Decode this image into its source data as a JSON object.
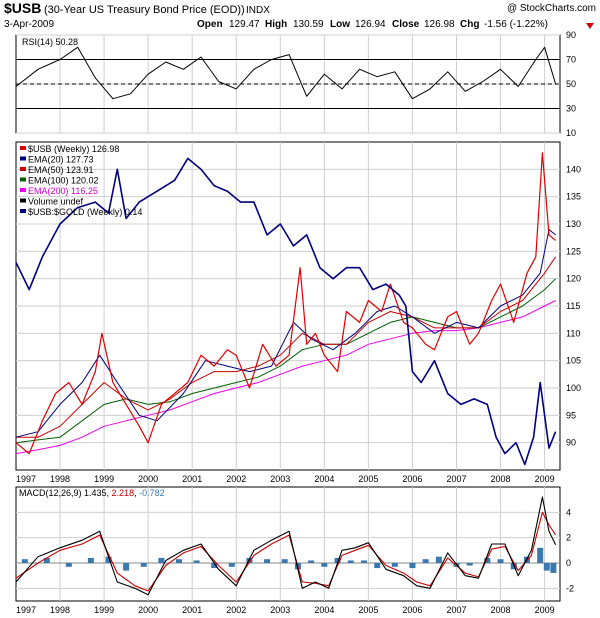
{
  "header": {
    "symbol": "$USB",
    "name": "(30-Year US Treasury Bond Price (EOD))",
    "exchange": "INDX",
    "date": "3-Apr-2009",
    "copyright": "@ StockCharts.com",
    "open_label": "Open",
    "open": "129.47",
    "high_label": "High",
    "high": "130.59",
    "low_label": "Low",
    "low": "126.94",
    "close_label": "Close",
    "close": "126.98",
    "chg_label": "Chg",
    "chg": "-1.56 (-1.22%)"
  },
  "colors": {
    "price": "#e00000",
    "ema20": "#000080",
    "ema50": "#cc0000",
    "ema100": "#006000",
    "ema200": "#ee00ee",
    "gold": "#000080",
    "macd": "#000000",
    "signal": "#cc0000",
    "hist": "#3a78b0",
    "grid": "#cfcfcf",
    "frame": "#000000"
  },
  "chart_data": [
    {
      "type": "line",
      "title": "RSI(14) 50.28",
      "ylim": [
        10,
        90
      ],
      "yticks": [
        10,
        30,
        50,
        70,
        90
      ],
      "reference_lines": [
        30,
        50,
        70
      ],
      "series": [
        {
          "name": "RSI(14)",
          "value": 50.28,
          "x": [
            1997.0,
            1997.5,
            1998.0,
            1998.4,
            1998.8,
            1999.2,
            1999.6,
            2000.0,
            2000.4,
            2000.8,
            2001.2,
            2001.6,
            2002.0,
            2002.4,
            2002.8,
            2003.2,
            2003.6,
            2004.0,
            2004.4,
            2004.8,
            2005.2,
            2005.6,
            2006.0,
            2006.4,
            2006.8,
            2007.2,
            2007.6,
            2008.0,
            2008.4,
            2008.8,
            2009.0,
            2009.25
          ],
          "y": [
            48,
            62,
            70,
            80,
            55,
            38,
            42,
            58,
            68,
            62,
            72,
            52,
            46,
            62,
            70,
            74,
            40,
            58,
            46,
            62,
            56,
            60,
            38,
            46,
            60,
            44,
            52,
            62,
            48,
            70,
            80,
            50
          ]
        }
      ]
    },
    {
      "type": "line",
      "title": "$USB (Weekly) 126.98",
      "ylim": [
        85,
        145
      ],
      "yticks": [
        90,
        95,
        100,
        105,
        110,
        115,
        120,
        125,
        130,
        135,
        140
      ],
      "xlim": [
        1997,
        2009.35
      ],
      "xticks": [
        "1997",
        "1998",
        "1999",
        "2000",
        "2001",
        "2002",
        "2003",
        "2004",
        "2005",
        "2006",
        "2007",
        "2008",
        "2009"
      ],
      "legend": [
        {
          "label": "$USB (Weekly) 126.98",
          "color": "#e00000"
        },
        {
          "label": "EMA(20) 127.73",
          "color": "#000080"
        },
        {
          "label": "EMA(50) 123.91",
          "color": "#cc0000"
        },
        {
          "label": "EMA(100) 120.02",
          "color": "#006000"
        },
        {
          "label": "EMA(200) 116.25",
          "color": "#ee00ee"
        },
        {
          "label": "Volume undef",
          "color": "#000000"
        },
        {
          "label": "$USB:$GOLD (Weekly) 0.14",
          "color": "#000080"
        }
      ],
      "series": [
        {
          "name": "$USB (Weekly)",
          "x": [
            1997.0,
            1997.3,
            1997.6,
            1997.9,
            1998.2,
            1998.5,
            1998.8,
            1998.95,
            1999.2,
            1999.5,
            1999.8,
            2000.0,
            2000.3,
            2000.6,
            2000.9,
            2001.2,
            2001.5,
            2001.8,
            2002.0,
            2002.3,
            2002.6,
            2002.9,
            2003.2,
            2003.45,
            2003.6,
            2003.8,
            2004.0,
            2004.3,
            2004.5,
            2004.8,
            2005.0,
            2005.3,
            2005.5,
            2005.8,
            2006.0,
            2006.3,
            2006.5,
            2006.8,
            2007.0,
            2007.3,
            2007.5,
            2007.8,
            2008.0,
            2008.3,
            2008.6,
            2008.8,
            2008.95,
            2009.1,
            2009.25
          ],
          "y": [
            90,
            88,
            94,
            99,
            101,
            97,
            103,
            110,
            101,
            97,
            93,
            90,
            97,
            99,
            101,
            106,
            104,
            107,
            106,
            100,
            108,
            104,
            106,
            122,
            108,
            110,
            106,
            103,
            114,
            112,
            116,
            114,
            119,
            112,
            111,
            108,
            107,
            113,
            114,
            108,
            110,
            116,
            119,
            112,
            121,
            124,
            143,
            128,
            127
          ]
        },
        {
          "name": "EMA(20)",
          "x": [
            1997.0,
            1997.5,
            1998.0,
            1998.5,
            1998.9,
            1999.3,
            1999.8,
            2000.2,
            2000.8,
            2001.3,
            2001.8,
            2002.3,
            2002.8,
            2003.3,
            2003.7,
            2004.2,
            2004.7,
            2005.2,
            2005.6,
            2006.0,
            2006.5,
            2007.0,
            2007.5,
            2008.0,
            2008.5,
            2008.9,
            2009.1,
            2009.25
          ],
          "y": [
            91,
            92,
            97,
            101,
            106,
            101,
            95,
            94,
            99,
            105,
            104,
            103,
            104,
            112,
            109,
            107,
            110,
            114,
            115,
            113,
            110,
            112,
            111,
            115,
            117,
            121,
            129,
            128
          ]
        },
        {
          "name": "EMA(50)",
          "x": [
            1997.0,
            1997.5,
            1998.0,
            1998.5,
            1999.0,
            1999.5,
            2000.0,
            2000.5,
            2001.0,
            2001.5,
            2002.0,
            2002.5,
            2003.0,
            2003.5,
            2004.0,
            2004.5,
            2005.0,
            2005.5,
            2006.0,
            2006.5,
            2007.0,
            2007.5,
            2008.0,
            2008.5,
            2009.0,
            2009.25
          ],
          "y": [
            91,
            91,
            93,
            97,
            101,
            98,
            96,
            98,
            101,
            103,
            103,
            104,
            106,
            110,
            108,
            108,
            112,
            114,
            113,
            111,
            111,
            111,
            114,
            116,
            121,
            124
          ]
        },
        {
          "name": "EMA(100)",
          "x": [
            1997.0,
            1997.5,
            1998.0,
            1998.5,
            1999.0,
            1999.5,
            2000.0,
            2000.5,
            2001.0,
            2001.5,
            2002.0,
            2002.5,
            2003.0,
            2003.5,
            2004.0,
            2004.5,
            2005.0,
            2005.5,
            2006.0,
            2006.5,
            2007.0,
            2007.5,
            2008.0,
            2008.5,
            2009.0,
            2009.25
          ],
          "y": [
            90,
            90.5,
            91,
            94,
            97,
            98,
            97,
            97.5,
            99,
            100,
            101,
            102,
            104,
            107,
            108,
            108,
            110,
            112,
            113,
            112,
            111,
            111,
            113,
            115,
            118,
            120
          ]
        },
        {
          "name": "EMA(200)",
          "x": [
            1997.0,
            1997.5,
            1998.0,
            1998.5,
            1999.0,
            1999.5,
            2000.0,
            2000.5,
            2001.0,
            2001.5,
            2002.0,
            2002.5,
            2003.0,
            2003.5,
            2004.0,
            2004.5,
            2005.0,
            2005.5,
            2006.0,
            2006.5,
            2007.0,
            2007.5,
            2008.0,
            2008.5,
            2009.0,
            2009.25
          ],
          "y": [
            88,
            88.7,
            89.5,
            91,
            93,
            94,
            95,
            96,
            97.5,
            99,
            100,
            101,
            102.5,
            104,
            105,
            106,
            108,
            109,
            110,
            110.5,
            110.5,
            111,
            112,
            113,
            115,
            116
          ]
        },
        {
          "name": "$USB:$GOLD (Weekly)",
          "x": [
            1997.0,
            1997.3,
            1997.6,
            1998.0,
            1998.4,
            1998.8,
            1999.1,
            1999.3,
            1999.5,
            1999.8,
            2000.2,
            2000.6,
            2000.9,
            2001.2,
            2001.5,
            2001.8,
            2002.1,
            2002.4,
            2002.7,
            2003.0,
            2003.3,
            2003.6,
            2003.9,
            2004.2,
            2004.5,
            2004.8,
            2005.1,
            2005.4,
            2005.7,
            2005.85,
            2006.0,
            2006.2,
            2006.5,
            2006.8,
            2007.1,
            2007.4,
            2007.7,
            2007.9,
            2008.1,
            2008.35,
            2008.55,
            2008.75,
            2008.9,
            2009.1,
            2009.25
          ],
          "y": [
            123,
            118,
            124,
            130,
            133,
            134,
            132,
            140,
            131,
            134,
            136,
            138,
            142,
            140,
            137,
            136,
            134,
            134,
            128,
            130,
            126,
            128,
            122,
            120,
            122,
            122,
            118,
            119,
            117,
            115,
            103,
            101,
            105,
            99,
            97,
            98,
            97,
            91,
            88,
            90,
            86,
            91,
            101,
            89,
            92
          ]
        }
      ]
    },
    {
      "type": "line",
      "title": "MACD(12,26,9) 1.435, 2.218, -0.782",
      "ylim": [
        -3,
        6
      ],
      "yticks": [
        -2,
        0,
        2,
        4
      ],
      "series": [
        {
          "name": "MACD(12,26,9)",
          "value": 1.435,
          "x": [
            1997.0,
            1997.5,
            1998.0,
            1998.5,
            1998.9,
            1999.3,
            1999.7,
            2000.0,
            2000.4,
            2000.8,
            2001.2,
            2001.6,
            2002.0,
            2002.4,
            2002.8,
            2003.2,
            2003.5,
            2003.8,
            2004.1,
            2004.4,
            2004.7,
            2005.0,
            2005.4,
            2005.8,
            2006.1,
            2006.4,
            2006.8,
            2007.2,
            2007.5,
            2007.8,
            2008.1,
            2008.4,
            2008.7,
            2008.95,
            2009.1,
            2009.25
          ],
          "y": [
            -1.5,
            0.5,
            1.2,
            1.8,
            2.5,
            -1.5,
            -2.0,
            -2.5,
            0.2,
            1.0,
            1.5,
            -0.5,
            -1.8,
            1.0,
            1.8,
            2.5,
            -2.0,
            -1.5,
            -2.0,
            1.0,
            1.2,
            1.6,
            -0.5,
            -1.0,
            -1.8,
            -2.0,
            0.8,
            -1.0,
            -1.2,
            1.5,
            1.5,
            -1.0,
            1.0,
            5.2,
            2.5,
            1.435
          ]
        },
        {
          "name": "Signal",
          "value": 2.218,
          "x": [
            1997.0,
            1997.5,
            1998.0,
            1998.5,
            1998.9,
            1999.3,
            1999.7,
            2000.0,
            2000.4,
            2000.8,
            2001.2,
            2001.6,
            2002.0,
            2002.4,
            2002.8,
            2003.2,
            2003.5,
            2003.8,
            2004.1,
            2004.4,
            2004.7,
            2005.0,
            2005.4,
            2005.8,
            2006.1,
            2006.4,
            2006.8,
            2007.2,
            2007.5,
            2007.8,
            2008.1,
            2008.4,
            2008.7,
            2008.95,
            2009.1,
            2009.25
          ],
          "y": [
            -1.2,
            0.0,
            1.0,
            1.5,
            2.2,
            -0.8,
            -1.8,
            -2.2,
            -0.2,
            0.8,
            1.3,
            -0.2,
            -1.5,
            0.6,
            1.5,
            2.2,
            -1.5,
            -1.6,
            -1.8,
            0.6,
            1.0,
            1.4,
            -0.2,
            -0.8,
            -1.5,
            -1.8,
            0.4,
            -0.8,
            -1.1,
            1.1,
            1.3,
            -0.6,
            0.6,
            4.0,
            3.0,
            2.218
          ]
        },
        {
          "name": "Histogram",
          "value": -0.782,
          "x": [
            1997.2,
            1997.7,
            1998.2,
            1998.7,
            1999.1,
            1999.5,
            1999.9,
            2000.3,
            2000.7,
            2001.1,
            2001.5,
            2001.9,
            2002.3,
            2002.7,
            2003.1,
            2003.4,
            2003.7,
            2004.0,
            2004.3,
            2004.6,
            2004.9,
            2005.2,
            2005.6,
            2006.0,
            2006.3,
            2006.6,
            2007.0,
            2007.3,
            2007.7,
            2008.0,
            2008.3,
            2008.6,
            2008.9,
            2009.05,
            2009.2
          ],
          "y": [
            0.3,
            0.4,
            -0.3,
            0.4,
            0.5,
            -0.6,
            -0.3,
            0.4,
            0.3,
            0.2,
            -0.4,
            -0.3,
            0.4,
            0.3,
            0.3,
            -0.5,
            0.2,
            -0.3,
            0.4,
            0.2,
            0.2,
            -0.4,
            -0.3,
            -0.4,
            0.3,
            0.5,
            -0.3,
            -0.2,
            0.4,
            0.3,
            -0.5,
            0.5,
            1.2,
            -0.6,
            -0.782
          ]
        }
      ]
    }
  ]
}
